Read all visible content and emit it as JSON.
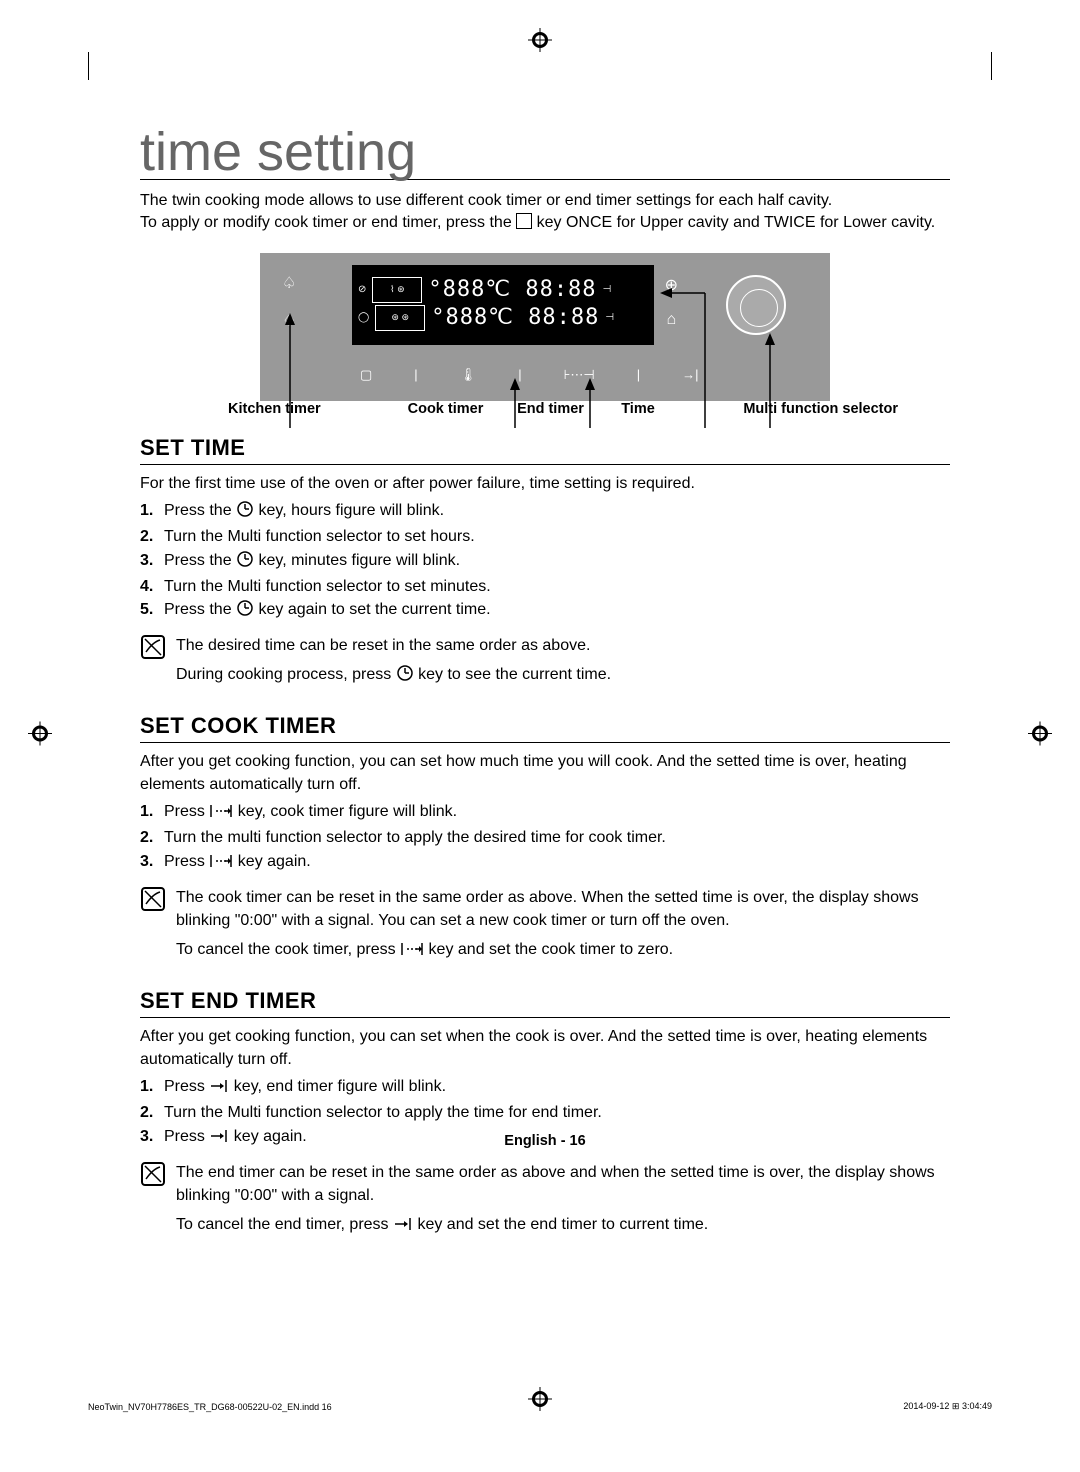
{
  "title": "time setting",
  "intro": {
    "line1": "The twin cooking mode allows to use different cook timer or end timer settings for each half cavity.",
    "line2a": "To apply or modify cook timer or end timer, press the ",
    "line2b": " key ONCE for Upper cavity and TWICE for Lower cavity."
  },
  "panel": {
    "seg_top": "°888℃  88:88",
    "seg_bot": "°888℃  88:88",
    "labels": {
      "kitchen": "Kitchen timer",
      "cook": "Cook timer",
      "end": "End timer",
      "time": "Time",
      "mfs": "Multi function selector"
    }
  },
  "set_time": {
    "heading": "SET TIME",
    "intro": "For the first time use of the oven or after power failure, time setting is required.",
    "steps": [
      {
        "n": "1.",
        "a": "Press the ",
        "b": " key, hours figure will blink."
      },
      {
        "n": "2.",
        "a": "Turn the Multi function selector to set hours.",
        "b": ""
      },
      {
        "n": "3.",
        "a": "Press the ",
        "b": " key, minutes figure will blink."
      },
      {
        "n": "4.",
        "a": "Turn the Multi function selector to set minutes.",
        "b": ""
      },
      {
        "n": "5.",
        "a": "Press the ",
        "b": " key again to set the current time."
      }
    ],
    "note1": "The desired time can be reset in the same order as above.",
    "note2a": "During cooking process, press ",
    "note2b": " key to see the current time."
  },
  "set_cook": {
    "heading": "SET COOK TIMER",
    "intro": "After you get cooking function, you can set how much time you will cook. And the setted time is over, heating elements automatically turn off.",
    "steps": [
      {
        "n": "1.",
        "a": "Press ",
        "b": " key, cook timer figure will blink."
      },
      {
        "n": "2.",
        "a": "Turn the multi function selector to apply the desired time for cook timer.",
        "b": ""
      },
      {
        "n": "3.",
        "a": "Press ",
        "b": " key again."
      }
    ],
    "note1": "The cook timer can be reset in the same order as above. When the setted time is over, the display shows blinking \"0:00\" with a signal. You can set a new cook timer or turn off the oven.",
    "note2a": "To cancel the cook timer, press ",
    "note2b": " key and set the cook timer to zero."
  },
  "set_end": {
    "heading": "SET END TIMER",
    "intro": "After you get cooking function, you can set when the cook is over. And the setted time is over, heating elements automatically turn off.",
    "steps": [
      {
        "n": "1.",
        "a": "Press ",
        "b": " key, end timer figure will blink."
      },
      {
        "n": "2.",
        "a": "Turn the Multi function selector to apply the time for end timer.",
        "b": ""
      },
      {
        "n": "3.",
        "a": "Press ",
        "b": " key again."
      }
    ],
    "note1": "The end timer can be reset in the same order as above and when the setted time is over, the display shows blinking \"0:00\" with a signal.",
    "note2a": "To cancel the end timer, press ",
    "note2b": " key and set the end timer to current time."
  },
  "footer": {
    "page": "English - 16",
    "indd": "NeoTwin_NV70H7786ES_TR_DG68-00522U-02_EN.indd   16",
    "ts": "2014-09-12   ⊞ 3:04:49"
  },
  "colors": {
    "panel_bg": "#999999",
    "screen_bg": "#000000",
    "text": "#000000",
    "title": "#666666"
  }
}
